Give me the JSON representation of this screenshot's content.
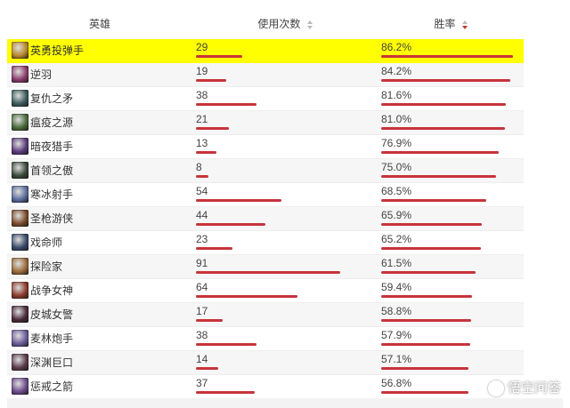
{
  "header": {
    "hero": "英雄",
    "uses": "使用次数",
    "rate": "胜率"
  },
  "max_uses": 91,
  "rows": [
    {
      "name": "英勇投弹手",
      "uses": "29",
      "rate": "86.2%",
      "uses_value": 29,
      "rate_value": 86.2,
      "avatar_color": "#b8862b",
      "highlight": true
    },
    {
      "name": "逆羽",
      "uses": "19",
      "rate": "84.2%",
      "uses_value": 19,
      "rate_value": 84.2,
      "avatar_color": "#8a3a6a"
    },
    {
      "name": "复仇之矛",
      "uses": "38",
      "rate": "81.6%",
      "uses_value": 38,
      "rate_value": 81.6,
      "avatar_color": "#3b5a5a"
    },
    {
      "name": "瘟疫之源",
      "uses": "21",
      "rate": "81.0%",
      "uses_value": 21,
      "rate_value": 81.0,
      "avatar_color": "#4a6a3a"
    },
    {
      "name": "暗夜猎手",
      "uses": "13",
      "rate": "76.9%",
      "uses_value": 13,
      "rate_value": 76.9,
      "avatar_color": "#5a3a7a"
    },
    {
      "name": "首领之傲",
      "uses": "8",
      "rate": "75.0%",
      "uses_value": 8,
      "rate_value": 75.0,
      "avatar_color": "#3a4a3a"
    },
    {
      "name": "寒冰射手",
      "uses": "54",
      "rate": "68.5%",
      "uses_value": 54,
      "rate_value": 68.5,
      "avatar_color": "#5a6a9a"
    },
    {
      "name": "圣枪游侠",
      "uses": "44",
      "rate": "65.9%",
      "uses_value": 44,
      "rate_value": 65.9,
      "avatar_color": "#7a4a2a"
    },
    {
      "name": "戏命师",
      "uses": "23",
      "rate": "65.2%",
      "uses_value": 23,
      "rate_value": 65.2,
      "avatar_color": "#3a4a6a"
    },
    {
      "name": "探险家",
      "uses": "91",
      "rate": "61.5%",
      "uses_value": 91,
      "rate_value": 61.5,
      "avatar_color": "#9a6a3a"
    },
    {
      "name": "战争女神",
      "uses": "64",
      "rate": "59.4%",
      "uses_value": 64,
      "rate_value": 59.4,
      "avatar_color": "#8a3a2a"
    },
    {
      "name": "皮城女警",
      "uses": "17",
      "rate": "58.8%",
      "uses_value": 17,
      "rate_value": 58.8,
      "avatar_color": "#4a2a3a"
    },
    {
      "name": "麦林炮手",
      "uses": "38",
      "rate": "57.9%",
      "uses_value": 38,
      "rate_value": 57.9,
      "avatar_color": "#6a5a9a"
    },
    {
      "name": "深渊巨口",
      "uses": "14",
      "rate": "57.1%",
      "uses_value": 14,
      "rate_value": 57.1,
      "avatar_color": "#5a3a4a"
    },
    {
      "name": "惩戒之箭",
      "uses": "37",
      "rate": "56.8%",
      "uses_value": 37,
      "rate_value": 56.8,
      "avatar_color": "#6a4a8a"
    }
  ],
  "colors": {
    "bar": "#c8333a",
    "highlight": "#ffff00"
  },
  "watermark": "悟空问答"
}
